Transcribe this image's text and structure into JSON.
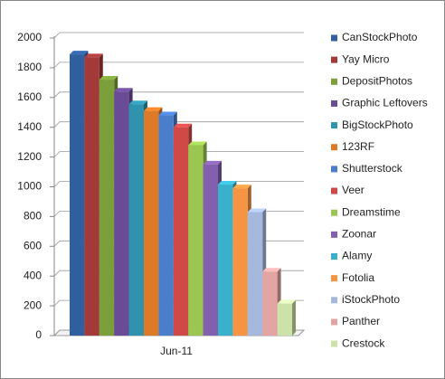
{
  "chart_data": {
    "type": "bar3d",
    "categories": [
      "Jun-11"
    ],
    "series": [
      {
        "name": "CanStockPhoto",
        "color": "#2f5f9f",
        "values": [
          1890
        ]
      },
      {
        "name": "Yay Micro",
        "color": "#a33939",
        "values": [
          1870
        ]
      },
      {
        "name": "DepositPhotos",
        "color": "#7b9f3a",
        "values": [
          1720
        ]
      },
      {
        "name": "Graphic Leftovers",
        "color": "#6a4c96",
        "values": [
          1640
        ]
      },
      {
        "name": "BigStockPhoto",
        "color": "#2f93ad",
        "values": [
          1555
        ]
      },
      {
        "name": "123RF",
        "color": "#dd7a27",
        "values": [
          1510
        ]
      },
      {
        "name": "Shutterstock",
        "color": "#4a7ecb",
        "values": [
          1480
        ]
      },
      {
        "name": "Veer",
        "color": "#cf4a47",
        "values": [
          1400
        ]
      },
      {
        "name": "Dreamstime",
        "color": "#9bc651",
        "values": [
          1280
        ]
      },
      {
        "name": "Zoonar",
        "color": "#8260ad",
        "values": [
          1150
        ]
      },
      {
        "name": "Alamy",
        "color": "#3ab1cc",
        "values": [
          1015
        ]
      },
      {
        "name": "Fotolia",
        "color": "#f59443",
        "values": [
          990
        ]
      },
      {
        "name": "iStockPhoto",
        "color": "#a6b9dd",
        "values": [
          830
        ]
      },
      {
        "name": "Panther",
        "color": "#e3a5a4",
        "values": [
          430
        ]
      },
      {
        "name": "Crestock",
        "color": "#cde2a9",
        "values": [
          215
        ]
      }
    ],
    "ylim": [
      0,
      2000
    ],
    "yticks": [
      0,
      200,
      400,
      600,
      800,
      1000,
      1200,
      1400,
      1600,
      1800,
      2000
    ],
    "grid": true,
    "legend": "right"
  }
}
